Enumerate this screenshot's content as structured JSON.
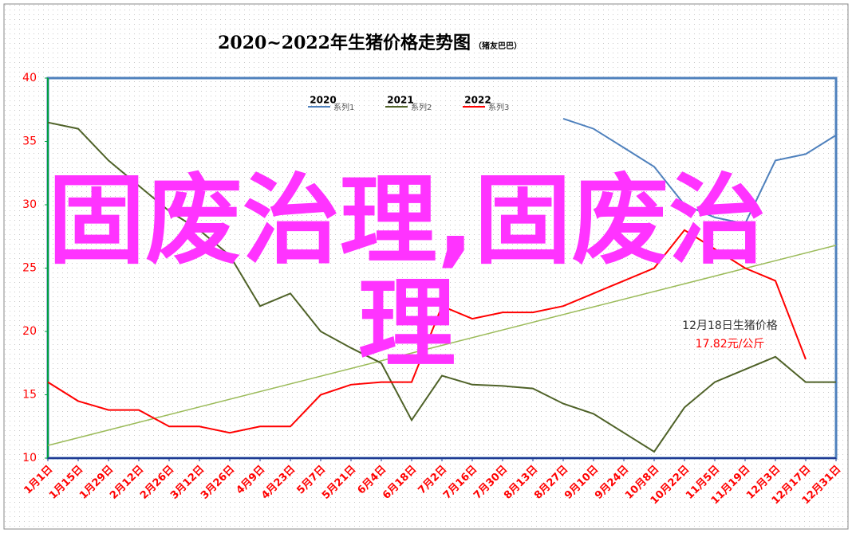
{
  "chart_data": {
    "type": "line",
    "title": "2020~2022年生猪价格走势图",
    "subtitle": "（猪友巴巴）",
    "categories": [
      "1月1日",
      "1月15日",
      "1月29日",
      "2月12日",
      "2月26日",
      "3月12日",
      "3月26日",
      "4月9日",
      "4月23日",
      "5月7日",
      "5月21日",
      "6月4日",
      "6月18日",
      "7月2日",
      "7月16日",
      "7月30日",
      "8月13日",
      "8月27日",
      "9月10日",
      "9月24日",
      "10月8日",
      "10月22日",
      "11月5日",
      "11月19日",
      "12月3日",
      "12月17日",
      "12月31日"
    ],
    "series": [
      {
        "name": "系列1",
        "label": "2020",
        "color": "#4f81bd",
        "values": [
          null,
          null,
          null,
          null,
          null,
          null,
          null,
          null,
          null,
          null,
          null,
          null,
          null,
          null,
          null,
          null,
          null,
          36.8,
          36,
          34.5,
          33,
          30,
          29,
          28.5,
          33.5,
          34,
          35.5
        ]
      },
      {
        "name": "系列2",
        "label": "2021",
        "color": "#4f6228",
        "values": [
          36.5,
          36,
          33.5,
          31.5,
          29.5,
          28,
          26,
          22,
          23,
          20,
          18.7,
          17.5,
          13,
          16.5,
          15.8,
          15.7,
          15.5,
          14.3,
          13.5,
          12,
          10.5,
          14,
          16,
          17,
          18,
          16,
          16
        ]
      },
      {
        "name": "系列3",
        "label": "2022",
        "color": "#ff0000",
        "values": [
          16,
          14.5,
          13.8,
          13.8,
          12.5,
          12.5,
          12,
          12.5,
          12.5,
          15,
          15.8,
          16,
          16,
          22,
          21,
          21.5,
          21.5,
          22,
          23,
          24,
          25,
          28,
          26.5,
          25,
          24,
          17.8,
          null
        ]
      }
    ],
    "trendline": {
      "color": "#9bbb59",
      "values": [
        11,
        26.8
      ]
    },
    "ylim": [
      10,
      40
    ],
    "yticks": [
      10,
      15,
      20,
      25,
      30,
      35,
      40
    ],
    "annotation": {
      "title": "12月18日生猪价格",
      "value": "17.82元/公斤"
    },
    "overlay_text": "固废治理,固废治理"
  }
}
